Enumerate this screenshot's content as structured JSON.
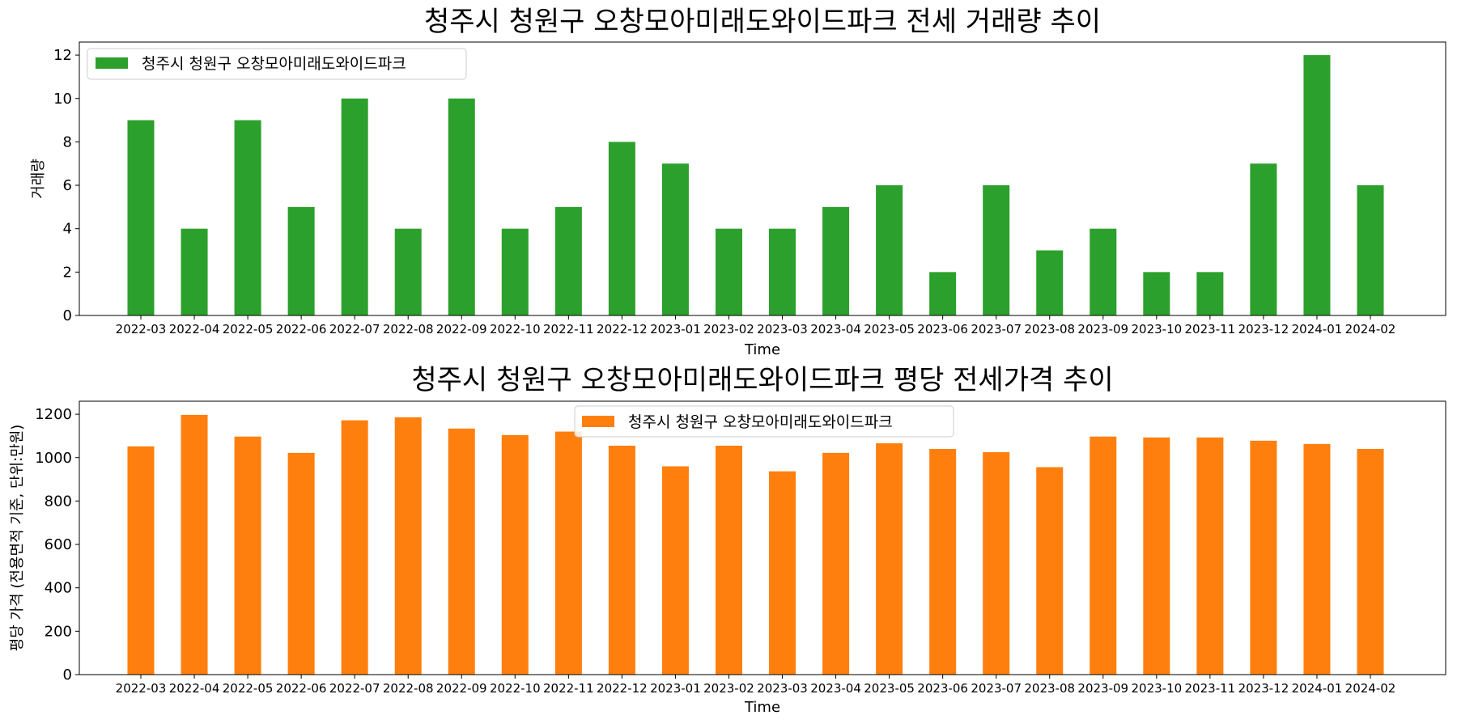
{
  "chart_data": [
    {
      "type": "bar",
      "title": "청주시 청원구 오창모아미래도와이드파크 전세 거래량 추이",
      "xlabel": "Time",
      "ylabel": "거래량",
      "legend": {
        "label": "청주시 청원구 오창모아미래도와이드파크",
        "position": "upper-left"
      },
      "color": "#2ca02c",
      "ylim": [
        0,
        12.6
      ],
      "yticks": [
        0,
        2,
        4,
        6,
        8,
        10,
        12
      ],
      "grid": false,
      "categories": [
        "2022-03",
        "2022-04",
        "2022-05",
        "2022-06",
        "2022-07",
        "2022-08",
        "2022-09",
        "2022-10",
        "2022-11",
        "2022-12",
        "2023-01",
        "2023-02",
        "2023-03",
        "2023-04",
        "2023-05",
        "2023-06",
        "2023-07",
        "2023-08",
        "2023-09",
        "2023-10",
        "2023-11",
        "2023-12",
        "2024-01",
        "2024-02"
      ],
      "values": [
        9,
        4,
        9,
        5,
        10,
        4,
        10,
        4,
        5,
        8,
        7,
        4,
        4,
        5,
        6,
        2,
        6,
        3,
        4,
        2,
        2,
        7,
        12,
        6
      ]
    },
    {
      "type": "bar",
      "title": "청주시 청원구 오창모아미래도와이드파크 평당 전세가격 추이",
      "xlabel": "Time",
      "ylabel": "평당 가격 (전용면적 기준, 단위:만원)",
      "legend": {
        "label": "청주시 청원구 오창모아미래도와이드파크",
        "position": "upper-center"
      },
      "color": "#ff7f0e",
      "ylim": [
        0,
        1260
      ],
      "yticks": [
        0,
        200,
        400,
        600,
        800,
        1000,
        1200
      ],
      "grid": false,
      "categories": [
        "2022-03",
        "2022-04",
        "2022-05",
        "2022-06",
        "2022-07",
        "2022-08",
        "2022-09",
        "2022-10",
        "2022-11",
        "2022-12",
        "2023-01",
        "2023-02",
        "2023-03",
        "2023-04",
        "2023-05",
        "2023-06",
        "2023-07",
        "2023-08",
        "2023-09",
        "2023-10",
        "2023-11",
        "2023-12",
        "2024-01",
        "2024-02"
      ],
      "values": [
        1052,
        1197,
        1097,
        1022,
        1172,
        1186,
        1134,
        1104,
        1120,
        1055,
        960,
        1055,
        937,
        1022,
        1066,
        1040,
        1025,
        956,
        1097,
        1093,
        1093,
        1078,
        1063,
        1040
      ]
    }
  ]
}
